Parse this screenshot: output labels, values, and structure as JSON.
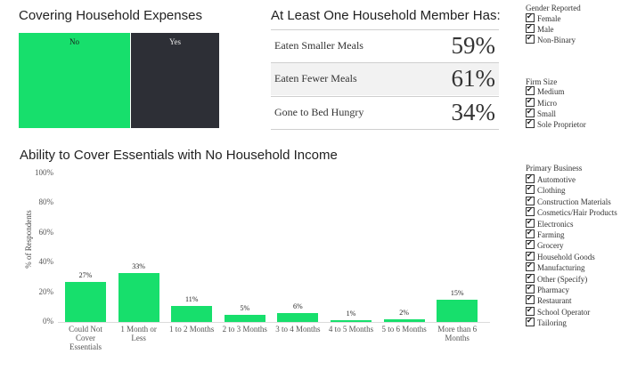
{
  "covering": {
    "title": "Covering Household Expenses",
    "no_label": "No",
    "yes_label": "Yes",
    "colors": {
      "no": "#17df6c",
      "yes": "#2d2f36"
    }
  },
  "household": {
    "title": "At Least One Household Member Has:",
    "rows": [
      {
        "label": "Eaten Smaller Meals",
        "value": "59%"
      },
      {
        "label": "Eaten Fewer Meals",
        "value": "61%"
      },
      {
        "label": "Gone to Bed Hungry",
        "value": "34%"
      }
    ]
  },
  "filters": {
    "gender": {
      "title": "Gender Reported",
      "items": [
        "Female",
        "Male",
        "Non-Binary"
      ]
    },
    "firm_size": {
      "title": "Firm Size",
      "items": [
        "Medium",
        "Micro",
        "Small",
        "Sole Proprietor"
      ]
    },
    "primary_business": {
      "title": "Primary Business",
      "items": [
        "Automotive",
        "Clothing",
        "Construction Materials",
        "Cosmetics/Hair Products",
        "Electronics",
        "Farming",
        "Grocery",
        "Household Goods",
        "Manufacturing",
        "Other (Specify)",
        "Pharmacy",
        "Restaurant",
        "School Operator",
        "Tailoring"
      ]
    }
  },
  "chart_data": {
    "type": "bar",
    "title": "Ability to Cover Essentials with No Household Income",
    "ylabel": "% of Respondents",
    "xlabel": "",
    "ylim": [
      0,
      100
    ],
    "yticks": [
      "0%",
      "20%",
      "40%",
      "60%",
      "80%",
      "100%"
    ],
    "categories": [
      [
        "Could Not",
        "Cover",
        "Essentials"
      ],
      [
        "1 Month or",
        "Less"
      ],
      [
        "1 to 2 Months"
      ],
      [
        "2 to 3 Months"
      ],
      [
        "3 to 4 Months"
      ],
      [
        "4 to 5 Months"
      ],
      [
        "5 to 6 Months"
      ],
      [
        "More than 6",
        "Months"
      ]
    ],
    "values": [
      27,
      33,
      11,
      5,
      6,
      1,
      2,
      15
    ],
    "value_labels": [
      "27%",
      "33%",
      "11%",
      "5%",
      "6%",
      "1%",
      "2%",
      "15%"
    ],
    "bar_color": "#17df6c",
    "grid": false
  }
}
